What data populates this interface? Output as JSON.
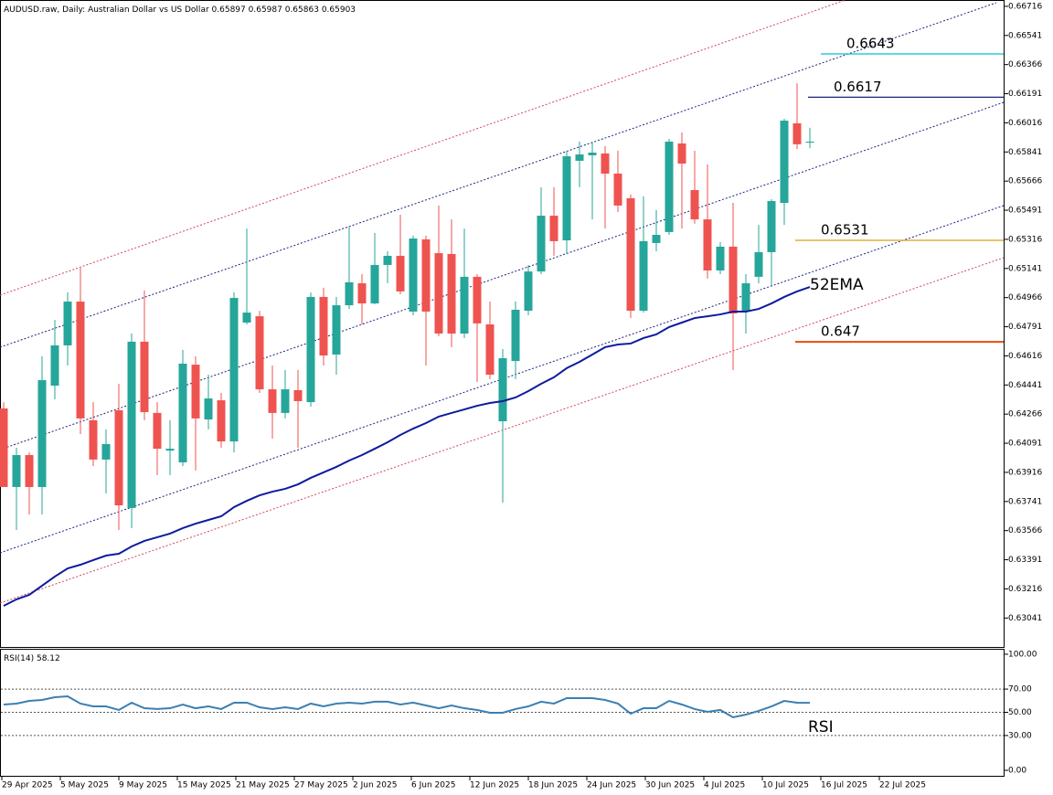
{
  "chart_data": [
    {
      "type": "candlestick",
      "title": "AUDUSD.raw, Daily:  Australian Dollar vs US Dollar",
      "up_color": "#26a69a",
      "down_color": "#ef5350",
      "open": [
        0.643,
        0.63828,
        0.6402,
        0.63828,
        0.64437,
        0.64679,
        0.64942,
        0.64229,
        0.63993,
        0.64289,
        0.63702,
        0.64701,
        0.64273,
        0.64047,
        0.63976,
        0.64563,
        0.64234,
        0.64349,
        0.64102,
        0.64816,
        0.64854,
        0.64415,
        0.64273,
        0.6441,
        0.64338,
        0.6497,
        0.64624,
        0.6492,
        0.65052,
        0.64931,
        0.65162,
        0.65217,
        0.64882,
        0.65316,
        0.65233,
        0.65228,
        0.6475,
        0.65091,
        0.64805,
        0.64223,
        0.64585,
        0.64887,
        0.65123,
        0.65458,
        0.6531,
        0.65788,
        0.65821,
        0.65832,
        0.65711,
        0.65563,
        0.64887,
        0.65294,
        0.6536,
        0.65892,
        0.65612,
        0.65436,
        0.65129,
        0.65272,
        0.64887,
        0.65091,
        0.65239,
        0.65535,
        0.66013,
        0.65897
      ],
      "high": [
        0.64338,
        0.64064,
        0.64036,
        0.64613,
        0.64832,
        0.64997,
        0.65145,
        0.64338,
        0.64174,
        0.64448,
        0.6475,
        0.65008,
        0.64338,
        0.64229,
        0.64651,
        0.64613,
        0.64503,
        0.64393,
        0.64997,
        0.65381,
        0.64887,
        0.64558,
        0.64531,
        0.64531,
        0.64997,
        0.65025,
        0.6497,
        0.65392,
        0.65107,
        0.65354,
        0.65244,
        0.65464,
        0.65338,
        0.65338,
        0.65519,
        0.65436,
        0.65381,
        0.65107,
        0.64942,
        0.64657,
        0.64942,
        0.65162,
        0.65629,
        0.65629,
        0.65848,
        0.65903,
        0.65903,
        0.65876,
        0.65848,
        0.65585,
        0.65574,
        0.65491,
        0.6592,
        0.65958,
        0.65848,
        0.65766,
        0.65299,
        0.65535,
        0.65107,
        0.65403,
        0.65557,
        0.6604,
        0.66254,
        0.65987
      ],
      "low": [
        0.63828,
        0.6357,
        0.63663,
        0.63663,
        0.64355,
        0.64558,
        0.64146,
        0.63954,
        0.63789,
        0.6357,
        0.63581,
        0.64229,
        0.63899,
        0.63899,
        0.63954,
        0.63927,
        0.64174,
        0.64064,
        0.64036,
        0.64805,
        0.64393,
        0.64119,
        0.6424,
        0.64064,
        0.64311,
        0.64558,
        0.64503,
        0.64898,
        0.64805,
        0.64926,
        0.65052,
        0.64986,
        0.6486,
        0.64558,
        0.64734,
        0.64668,
        0.64723,
        0.64459,
        0.64476,
        0.63734,
        0.64476,
        0.6486,
        0.65107,
        0.65217,
        0.65228,
        0.65629,
        0.65436,
        0.65381,
        0.6548,
        0.64843,
        0.64876,
        0.65244,
        0.65343,
        0.65381,
        0.6541,
        0.6508,
        0.65107,
        0.64531,
        0.6475,
        0.65052,
        0.65041,
        0.65403,
        0.65859,
        0.65863
      ],
      "close": [
        0.63828,
        0.6402,
        0.63828,
        0.6447,
        0.64679,
        0.64942,
        0.6424,
        0.63993,
        0.64086,
        0.63718,
        0.64701,
        0.64278,
        0.64058,
        0.64058,
        0.64569,
        0.6424,
        0.6436,
        0.64102,
        0.64964,
        0.64876,
        0.64415,
        0.64273,
        0.64415,
        0.64344,
        0.6497,
        0.64618,
        0.6492,
        0.65058,
        0.64931,
        0.65162,
        0.65217,
        0.65003,
        0.65321,
        0.64882,
        0.6475,
        0.6475,
        0.65091,
        0.64811,
        0.64503,
        0.64602,
        0.64893,
        0.65123,
        0.65458,
        0.65305,
        0.65815,
        0.65826,
        0.65837,
        0.65711,
        0.65519,
        0.64887,
        0.65305,
        0.65343,
        0.65903,
        0.65771,
        0.65436,
        0.65129,
        0.65272,
        0.64871,
        0.65052,
        0.65239,
        0.65546,
        0.66029,
        0.65887,
        0.65903
      ],
      "series": [
        {
          "name": "52EMA",
          "color": "#0d1b9e",
          "values": [
            0.63114,
            0.63153,
            0.6318,
            0.63235,
            0.6329,
            0.63339,
            0.63361,
            0.63389,
            0.63416,
            0.63427,
            0.63471,
            0.63504,
            0.63526,
            0.63548,
            0.63581,
            0.63608,
            0.6363,
            0.63652,
            0.63707,
            0.63745,
            0.63778,
            0.638,
            0.63817,
            0.63844,
            0.63883,
            0.63916,
            0.63949,
            0.63987,
            0.6402,
            0.64058,
            0.64097,
            0.64141,
            0.64179,
            0.64212,
            0.64251,
            0.64273,
            0.64294,
            0.64316,
            0.64333,
            0.64344,
            0.64366,
            0.64404,
            0.64448,
            0.64487,
            0.64542,
            0.6458,
            0.64624,
            0.64668,
            0.64684,
            0.6469,
            0.64723,
            0.64745,
            0.64789,
            0.64816,
            0.64843,
            0.64854,
            0.64865,
            0.64882,
            0.64882,
            0.64898,
            0.64931,
            0.6497,
            0.65003,
            0.6503
          ]
        }
      ],
      "levels": [
        {
          "value": 0.6643,
          "color": "#00c2d4",
          "text_color": "#3535b0"
        },
        {
          "value": 0.6617,
          "color": "#1a237e",
          "text_color": "#3535b0"
        },
        {
          "value": 0.6531,
          "color": "#d4a017",
          "text_color": "#dc2a5a"
        },
        {
          "value": 0.647,
          "color": "#e04e10",
          "text_color": "#dc2a5a"
        }
      ],
      "ylim": [
        0.62867,
        0.66754
      ],
      "yticks": [
        0.66716,
        0.66541,
        0.66366,
        0.66191,
        0.66016,
        0.65841,
        0.65666,
        0.65491,
        0.65316,
        0.65141,
        0.64966,
        0.64791,
        0.64616,
        0.64441,
        0.64266,
        0.64091,
        0.63916,
        0.63741,
        0.63566,
        0.63391,
        0.63216,
        0.63041
      ]
    },
    {
      "type": "line",
      "series": [
        {
          "name": "RSI(14)",
          "color": "#3c7fb0",
          "values": [
            56.7,
            57.5,
            59.8,
            60.6,
            63.0,
            63.8,
            57.5,
            55.1,
            55.1,
            52.0,
            58.3,
            53.5,
            52.8,
            53.5,
            56.7,
            53.5,
            55.1,
            52.8,
            58.3,
            58.3,
            54.3,
            52.8,
            54.3,
            52.8,
            57.5,
            55.1,
            57.5,
            58.3,
            57.5,
            59.1,
            59.1,
            56.7,
            58.3,
            55.9,
            53.5,
            55.9,
            53.5,
            52.0,
            49.6,
            49.6,
            52.8,
            55.1,
            59.1,
            57.5,
            62.2,
            62.2,
            62.2,
            60.6,
            57.5,
            48.8,
            53.5,
            53.5,
            59.8,
            56.7,
            52.8,
            50.4,
            52.0,
            45.7,
            48.0,
            51.2,
            55.1,
            59.8,
            58.3,
            58.12
          ]
        }
      ],
      "annotation": "RSI",
      "annotation_color": "#2e8b2e",
      "ylim": [
        -5.5,
        104.7
      ],
      "yticks": [
        {
          "value": 100,
          "label": "100.00"
        },
        {
          "value": 70,
          "label": "70.00"
        },
        {
          "value": 50,
          "label": "50.00"
        },
        {
          "value": 30,
          "label": "30.00"
        },
        {
          "value": 0,
          "label": "0.00"
        }
      ],
      "levels": [
        70,
        50,
        30
      ],
      "xlabels": [
        "29 Apr 2025",
        "5 May 2025",
        "9 May 2025",
        "15 May 2025",
        "21 May 2025",
        "27 May 2025",
        "2 Jun 2025",
        "6 Jun 2025",
        "12 Jun 2025",
        "18 Jun 2025",
        "24 Jun 2025",
        "30 Jun 2025",
        "4 Jul 2025",
        "10 Jul 2025",
        "16 Jul 2025",
        "22 Jul 2025"
      ]
    }
  ]
}
